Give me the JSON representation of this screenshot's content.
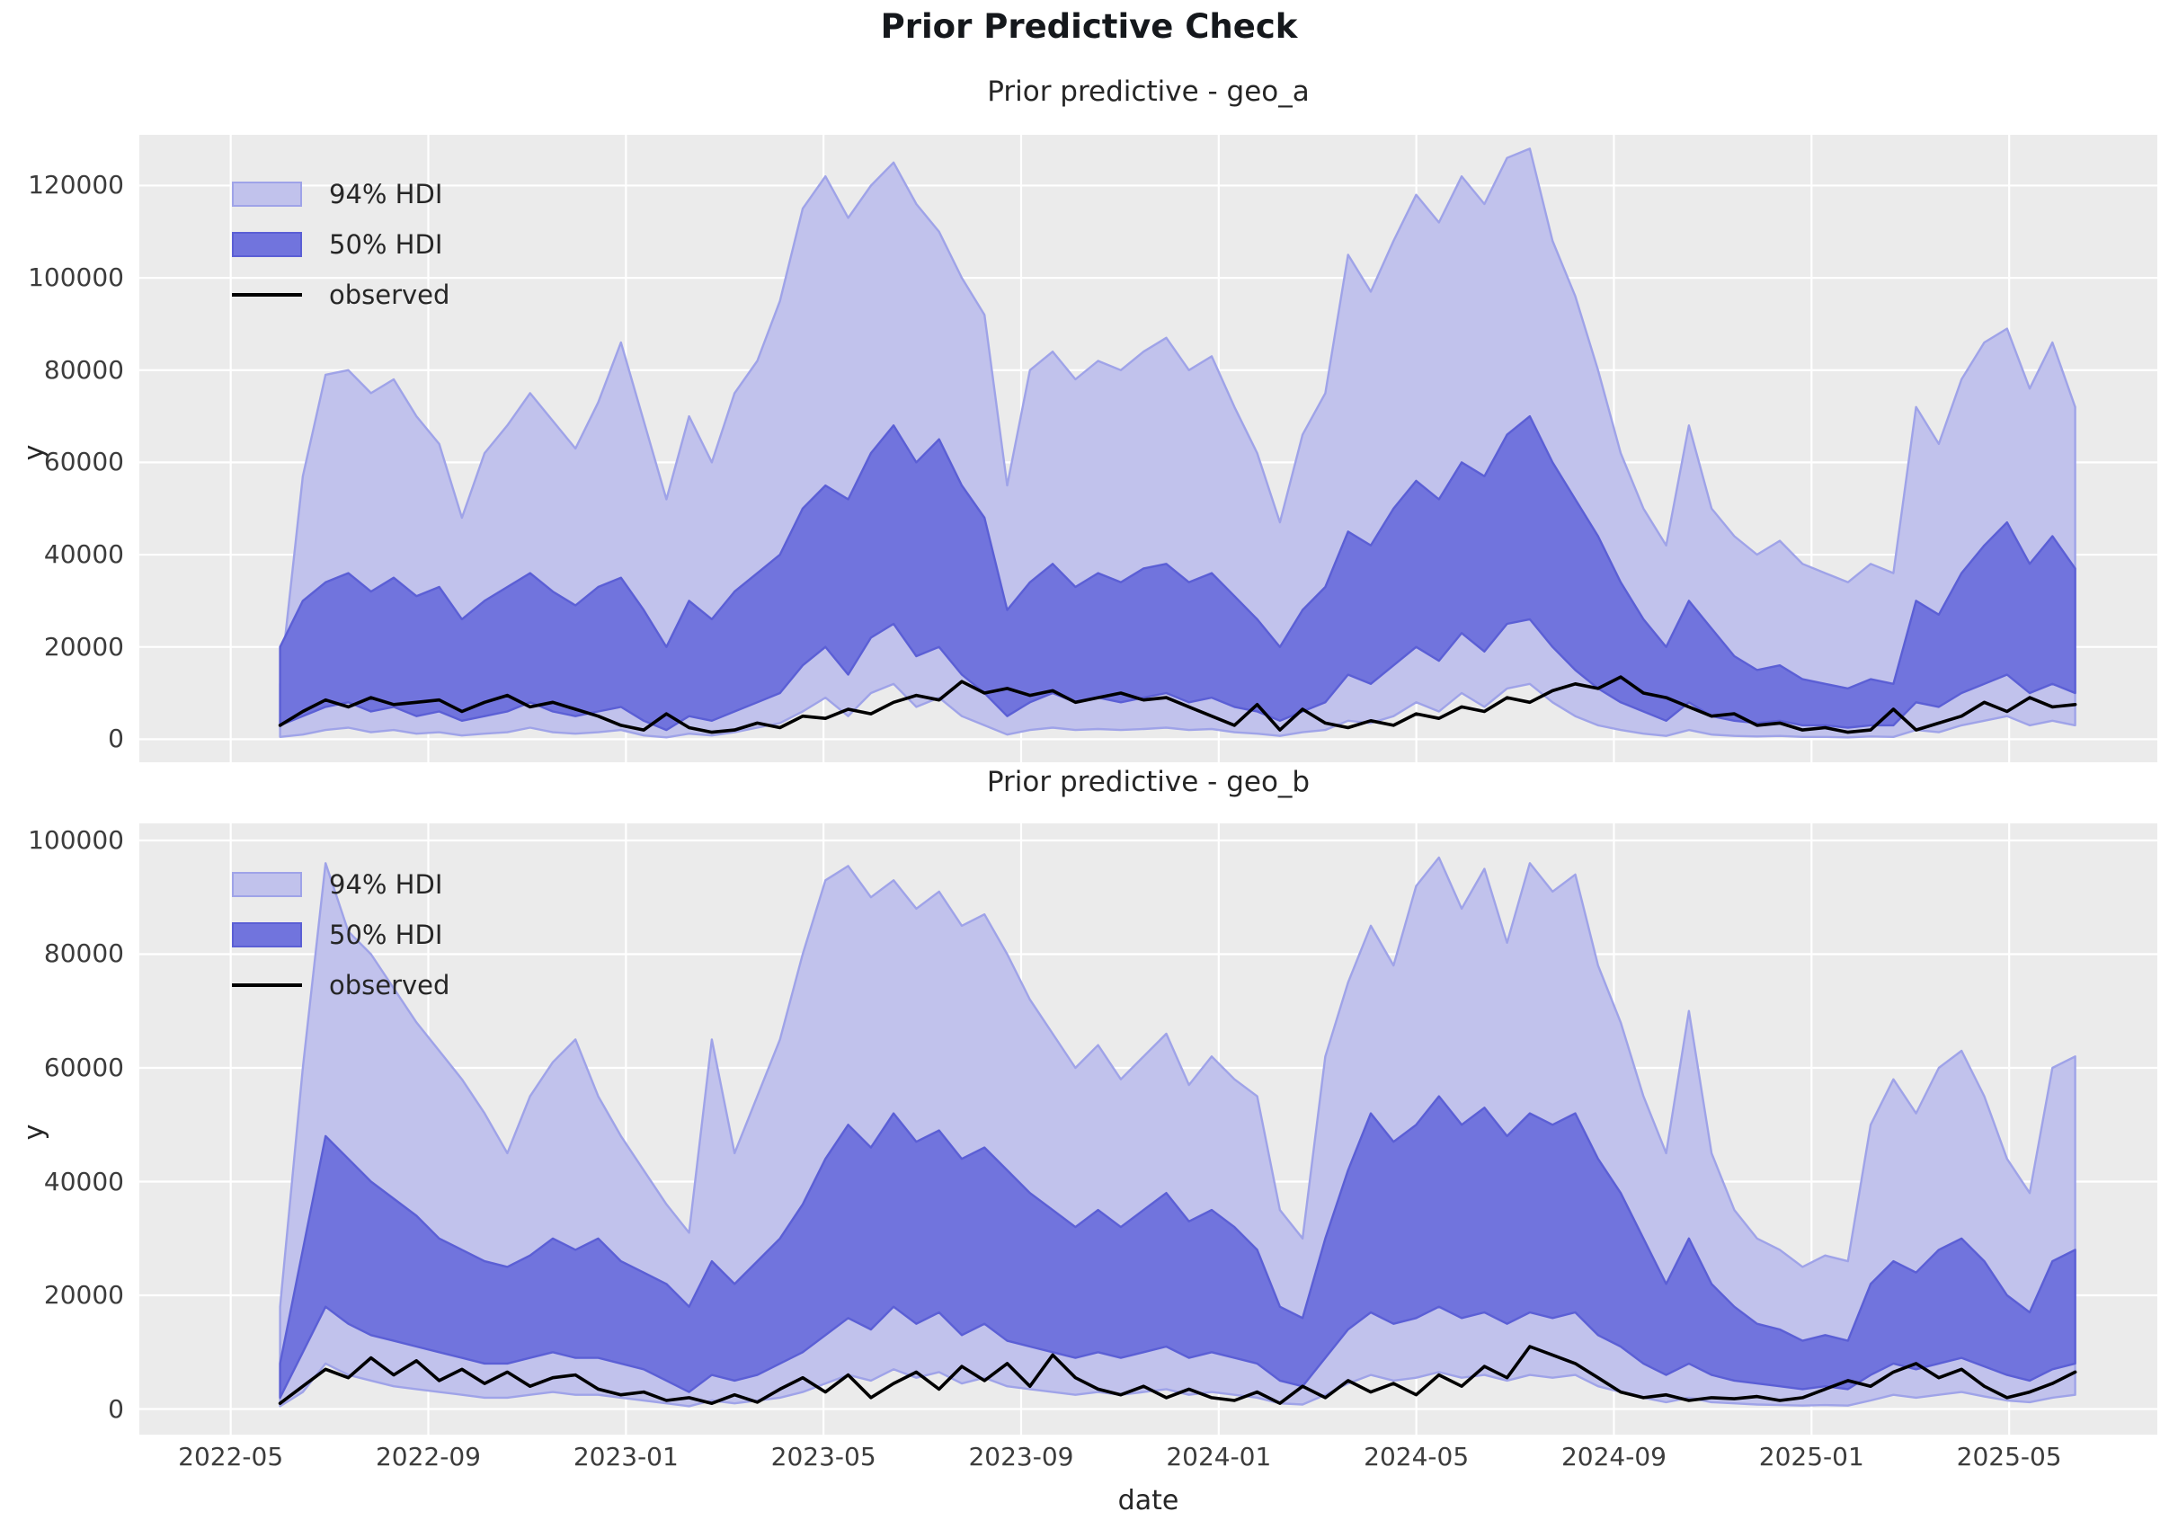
{
  "figure": {
    "title": "Prior Predictive Check",
    "xlabel": "date",
    "ylabel": "y"
  },
  "legend": {
    "items": [
      {
        "label": "94% HDI",
        "type": "patch"
      },
      {
        "label": "50% HDI",
        "type": "patch"
      },
      {
        "label": "observed",
        "type": "line"
      }
    ]
  },
  "style": {
    "figure_bg": "#ffffff",
    "plot_bg": "#ebebeb",
    "grid": "#ffffff",
    "hdi94_fill": "#c1c2ec",
    "hdi94_edge": "#9fa3e8",
    "hdi50_fill": "#7174dd",
    "hdi50_edge": "#5b5fd5",
    "observed": "#000000",
    "tick_color": "#3c3c3c",
    "title_color": "#15181c"
  },
  "chart_data": [
    {
      "type": "area",
      "title": "Prior predictive - geo_a",
      "ylabel": "y",
      "x_start": "2022-06-01",
      "x_step_days": 14,
      "x_tick_labels": [
        "2022-05",
        "2022-09",
        "2023-01",
        "2023-05",
        "2023-09",
        "2024-01",
        "2024-05",
        "2024-09",
        "2025-01",
        "2025-05"
      ],
      "x_tick_months": [
        0,
        4,
        8,
        12,
        16,
        20,
        24,
        28,
        32,
        36
      ],
      "show_x_tick_labels": false,
      "y_ticks": [
        0,
        20000,
        40000,
        60000,
        80000,
        100000,
        120000
      ],
      "ylim": [
        -5000,
        131000
      ],
      "xlim_months": [
        -1.85,
        39.0
      ],
      "grid": true,
      "legend_position": "upper-left",
      "series": {
        "hdi94_upper": [
          12000,
          57000,
          79000,
          80000,
          75000,
          78000,
          70000,
          64000,
          48000,
          62000,
          68000,
          75000,
          69000,
          63000,
          73000,
          86000,
          69000,
          52000,
          70000,
          60000,
          75000,
          82000,
          95000,
          115000,
          122000,
          113000,
          120000,
          125000,
          116000,
          110000,
          100000,
          92000,
          55000,
          80000,
          84000,
          78000,
          82000,
          80000,
          84000,
          87000,
          80000,
          83000,
          72000,
          62000,
          47000,
          66000,
          75000,
          105000,
          97000,
          108000,
          118000,
          112000,
          122000,
          116000,
          126000,
          128000,
          108000,
          96000,
          80000,
          62000,
          50000,
          42000,
          68000,
          50000,
          44000,
          40000,
          43000,
          38000,
          36000,
          34000,
          38000,
          36000,
          72000,
          64000,
          78000,
          86000,
          89000,
          76000,
          86000,
          72000
        ],
        "hdi50_upper": [
          20000,
          30000,
          34000,
          36000,
          32000,
          35000,
          31000,
          33000,
          26000,
          30000,
          33000,
          36000,
          32000,
          29000,
          33000,
          35000,
          28000,
          20000,
          30000,
          26000,
          32000,
          36000,
          40000,
          50000,
          55000,
          52000,
          62000,
          68000,
          60000,
          65000,
          55000,
          48000,
          28000,
          34000,
          38000,
          33000,
          36000,
          34000,
          37000,
          38000,
          34000,
          36000,
          31000,
          26000,
          20000,
          28000,
          33000,
          45000,
          42000,
          50000,
          56000,
          52000,
          60000,
          57000,
          66000,
          70000,
          60000,
          52000,
          44000,
          34000,
          26000,
          20000,
          30000,
          24000,
          18000,
          15000,
          16000,
          13000,
          12000,
          11000,
          13000,
          12000,
          30000,
          27000,
          36000,
          42000,
          47000,
          38000,
          44000,
          37000
        ],
        "hdi50_lower": [
          3000,
          5000,
          7000,
          8000,
          6000,
          7000,
          5000,
          6000,
          4000,
          5000,
          6000,
          8000,
          6000,
          5000,
          6000,
          7000,
          4000,
          2000,
          5000,
          4000,
          6000,
          8000,
          10000,
          16000,
          20000,
          14000,
          22000,
          25000,
          18000,
          20000,
          14000,
          10000,
          5000,
          8000,
          10000,
          8000,
          9000,
          8000,
          9000,
          10000,
          8000,
          9000,
          7000,
          6000,
          4000,
          6000,
          8000,
          14000,
          12000,
          16000,
          20000,
          17000,
          23000,
          19000,
          25000,
          26000,
          20000,
          15000,
          11000,
          8000,
          6000,
          4000,
          8000,
          5000,
          4000,
          3500,
          4000,
          3000,
          3000,
          2500,
          3000,
          3000,
          8000,
          7000,
          10000,
          12000,
          14000,
          10000,
          12000,
          10000
        ],
        "hdi94_lower": [
          500,
          1000,
          2000,
          2500,
          1500,
          2000,
          1200,
          1500,
          800,
          1200,
          1500,
          2500,
          1500,
          1200,
          1500,
          2000,
          800,
          400,
          1200,
          800,
          1500,
          2500,
          3500,
          6000,
          9000,
          5000,
          10000,
          12000,
          7000,
          9000,
          5000,
          3000,
          1000,
          2000,
          2500,
          2000,
          2200,
          2000,
          2200,
          2500,
          2000,
          2200,
          1500,
          1200,
          700,
          1500,
          2000,
          4000,
          3500,
          5000,
          8000,
          6000,
          10000,
          7000,
          11000,
          12000,
          8000,
          5000,
          3000,
          2000,
          1200,
          700,
          2000,
          1000,
          700,
          600,
          700,
          500,
          500,
          400,
          600,
          500,
          2000,
          1500,
          3000,
          4000,
          5000,
          3000,
          4000,
          3000
        ],
        "observed": [
          3000,
          6000,
          8500,
          7000,
          9000,
          7500,
          8000,
          8500,
          6000,
          8000,
          9500,
          7000,
          8000,
          6500,
          5000,
          3000,
          2000,
          5500,
          2500,
          1500,
          2000,
          3500,
          2500,
          5000,
          4500,
          6500,
          5500,
          8000,
          9500,
          8500,
          12500,
          10000,
          11000,
          9500,
          10500,
          8000,
          9000,
          10000,
          8500,
          9000,
          7000,
          5000,
          3000,
          7500,
          2000,
          6500,
          3500,
          2500,
          4000,
          3000,
          5500,
          4500,
          7000,
          6000,
          9000,
          8000,
          10500,
          12000,
          11000,
          13500,
          10000,
          9000,
          7000,
          5000,
          5500,
          3000,
          3500,
          2000,
          2500,
          1500,
          2000,
          6500,
          2000,
          3500,
          5000,
          8000,
          6000,
          9000,
          7000,
          7500
        ]
      }
    },
    {
      "type": "area",
      "title": "Prior predictive - geo_b",
      "ylabel": "y",
      "x_start": "2022-06-01",
      "x_step_days": 14,
      "x_tick_labels": [
        "2022-05",
        "2022-09",
        "2023-01",
        "2023-05",
        "2023-09",
        "2024-01",
        "2024-05",
        "2024-09",
        "2025-01",
        "2025-05"
      ],
      "x_tick_months": [
        0,
        4,
        8,
        12,
        16,
        20,
        24,
        28,
        32,
        36
      ],
      "show_x_tick_labels": true,
      "y_ticks": [
        0,
        20000,
        40000,
        60000,
        80000,
        100000
      ],
      "ylim": [
        -4500,
        103000
      ],
      "xlim_months": [
        -1.85,
        39.0
      ],
      "grid": true,
      "legend_position": "upper-left",
      "series": {
        "hdi94_upper": [
          18000,
          60000,
          96000,
          84000,
          80000,
          74000,
          68000,
          63000,
          58000,
          52000,
          45000,
          55000,
          61000,
          65000,
          55000,
          48000,
          42000,
          36000,
          31000,
          65000,
          45000,
          55000,
          65000,
          80000,
          93000,
          95500,
          90000,
          93000,
          88000,
          91000,
          85000,
          87000,
          80000,
          72000,
          66000,
          60000,
          64000,
          58000,
          62000,
          66000,
          57000,
          62000,
          58000,
          55000,
          35000,
          30000,
          62000,
          75000,
          85000,
          78000,
          92000,
          97000,
          88000,
          95000,
          82000,
          96000,
          91000,
          94000,
          78000,
          68000,
          55000,
          45000,
          70000,
          45000,
          35000,
          30000,
          28000,
          25000,
          27000,
          26000,
          50000,
          58000,
          52000,
          60000,
          63000,
          55000,
          44000,
          38000,
          60000,
          62000
        ],
        "hdi50_upper": [
          8000,
          28000,
          48000,
          44000,
          40000,
          37000,
          34000,
          30000,
          28000,
          26000,
          25000,
          27000,
          30000,
          28000,
          30000,
          26000,
          24000,
          22000,
          18000,
          26000,
          22000,
          26000,
          30000,
          36000,
          44000,
          50000,
          46000,
          52000,
          47000,
          49000,
          44000,
          46000,
          42000,
          38000,
          35000,
          32000,
          35000,
          32000,
          35000,
          38000,
          33000,
          35000,
          32000,
          28000,
          18000,
          16000,
          30000,
          42000,
          52000,
          47000,
          50000,
          55000,
          50000,
          53000,
          48000,
          52000,
          50000,
          52000,
          44000,
          38000,
          30000,
          22000,
          30000,
          22000,
          18000,
          15000,
          14000,
          12000,
          13000,
          12000,
          22000,
          26000,
          24000,
          28000,
          30000,
          26000,
          20000,
          17000,
          26000,
          28000
        ],
        "hdi50_lower": [
          2000,
          10000,
          18000,
          15000,
          13000,
          12000,
          11000,
          10000,
          9000,
          8000,
          8000,
          9000,
          10000,
          9000,
          9000,
          8000,
          7000,
          5000,
          3000,
          6000,
          5000,
          6000,
          8000,
          10000,
          13000,
          16000,
          14000,
          18000,
          15000,
          17000,
          13000,
          15000,
          12000,
          11000,
          10000,
          9000,
          10000,
          9000,
          10000,
          11000,
          9000,
          10000,
          9000,
          8000,
          5000,
          4000,
          9000,
          14000,
          17000,
          15000,
          16000,
          18000,
          16000,
          17000,
          15000,
          17000,
          16000,
          17000,
          13000,
          11000,
          8000,
          6000,
          8000,
          6000,
          5000,
          4500,
          4000,
          3500,
          4000,
          3500,
          6000,
          8000,
          7000,
          8000,
          9000,
          7500,
          6000,
          5000,
          7000,
          8000
        ],
        "hdi94_lower": [
          500,
          3000,
          8000,
          6000,
          5000,
          4000,
          3500,
          3000,
          2500,
          2000,
          2000,
          2500,
          3000,
          2500,
          2500,
          2000,
          1500,
          1000,
          500,
          1500,
          1000,
          1500,
          2000,
          3000,
          4500,
          6000,
          5000,
          7000,
          5500,
          6500,
          4500,
          5500,
          4000,
          3500,
          3000,
          2500,
          3000,
          2500,
          3000,
          3500,
          2500,
          3000,
          2500,
          2000,
          1000,
          800,
          2500,
          4500,
          6000,
          5000,
          5500,
          6500,
          5500,
          6000,
          5000,
          6000,
          5500,
          6000,
          4000,
          3000,
          2000,
          1200,
          2000,
          1200,
          1000,
          800,
          700,
          600,
          700,
          600,
          1500,
          2500,
          2000,
          2500,
          3000,
          2200,
          1500,
          1200,
          2000,
          2500
        ],
        "observed": [
          1000,
          4000,
          7000,
          5500,
          9000,
          6000,
          8500,
          5000,
          7000,
          4500,
          6500,
          4000,
          5500,
          6000,
          3500,
          2500,
          3000,
          1500,
          2000,
          1000,
          2500,
          1200,
          3500,
          5500,
          3000,
          6000,
          2000,
          4500,
          6500,
          3500,
          7500,
          5000,
          8000,
          4000,
          9500,
          5500,
          3500,
          2500,
          4000,
          2000,
          3500,
          2000,
          1500,
          3000,
          1000,
          4000,
          2000,
          5000,
          3000,
          4500,
          2500,
          6000,
          4000,
          7500,
          5500,
          11000,
          9500,
          8000,
          5500,
          3000,
          2000,
          2500,
          1500,
          2000,
          1800,
          2200,
          1500,
          2000,
          3500,
          5000,
          4000,
          6500,
          8000,
          5500,
          7000,
          4000,
          2000,
          3000,
          4500,
          6500
        ]
      }
    }
  ]
}
